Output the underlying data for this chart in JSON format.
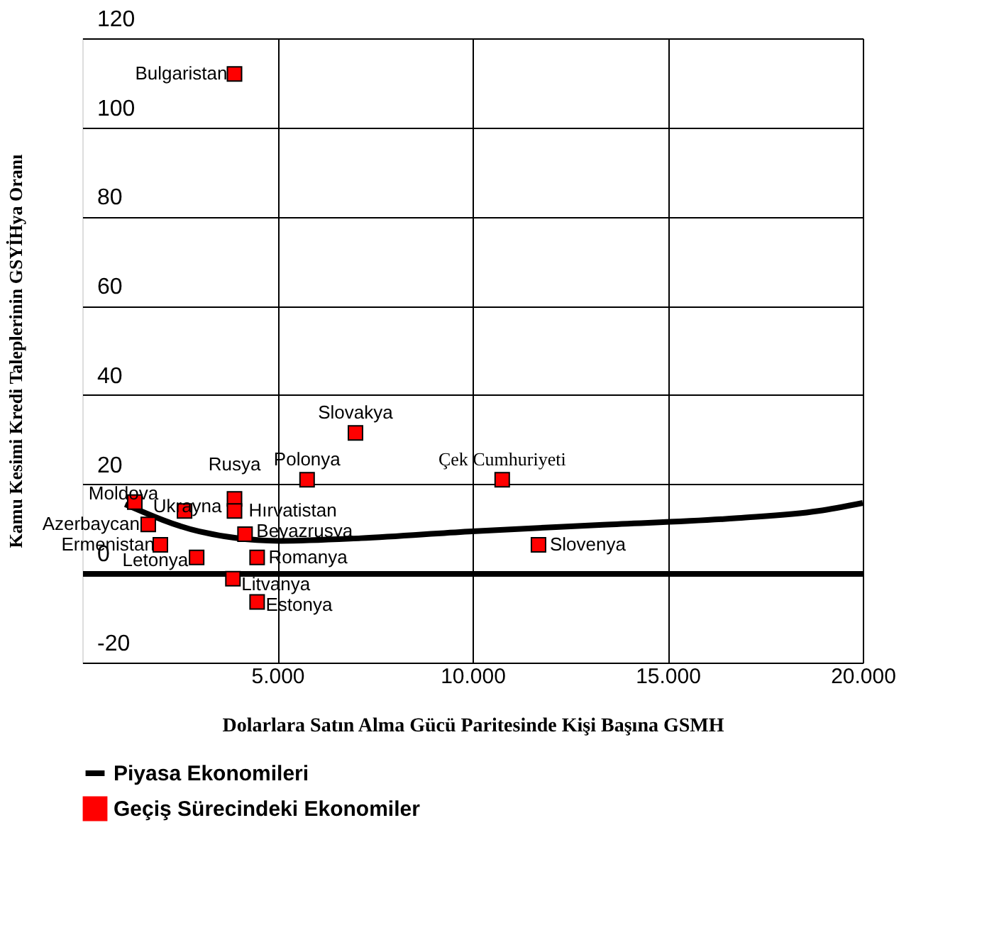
{
  "chart_data": {
    "type": "scatter",
    "xlabel": "Dolarlara Satın Alma Gücü Paritesinde Kişi Başına GSMH",
    "ylabel": "Kamu Kesimi Kredi Taleplerinin GSYİHya Oranı",
    "series": [
      {
        "name": "Piyasa Ekonomileri",
        "type": "line",
        "color": "#000000",
        "x": [
          1100,
          3000,
          5070,
          7140,
          9900,
          13345,
          16800,
          18860,
          20000
        ],
        "values": [
          15.5,
          9.4,
          7.3,
          7.9,
          9.4,
          10.9,
          12.4,
          14,
          15.8
        ]
      },
      {
        "name": "Geçiş Sürecindeki Ekonomiler",
        "color": "#ff0000",
        "marker": "square",
        "x": [
          3900,
          7000,
          5760,
          10760,
          1345,
          2620,
          3900,
          3900,
          1690,
          4170,
          2000,
          11690,
          2930,
          4480,
          3860,
          4480
        ],
        "values": [
          112,
          31.5,
          21,
          21,
          16,
          14,
          16.7,
          14,
          11,
          8.8,
          6.4,
          6.4,
          3.6,
          3.6,
          -1.2,
          -6.4
        ]
      }
    ],
    "annotations": [
      {
        "text": "Bulgaristan",
        "x": 3900,
        "y": 112
      },
      {
        "text": "Slovakya",
        "x": 7000,
        "y": 31.5
      },
      {
        "text": "Polonya",
        "x": 5760,
        "y": 21
      },
      {
        "text": "Çek Cumhuriyeti",
        "x": 10760,
        "y": 21
      },
      {
        "text": "Moldova",
        "x": 1345,
        "y": 16
      },
      {
        "text": "Ukrayna",
        "x": 2620,
        "y": 14
      },
      {
        "text": "Rusya",
        "x": 3900,
        "y": 16.7
      },
      {
        "text": "Hırvatistan",
        "x": 3900,
        "y": 14
      },
      {
        "text": "Azerbaycan",
        "x": 1690,
        "y": 11
      },
      {
        "text": "Beyazrusya",
        "x": 4170,
        "y": 8.8
      },
      {
        "text": "Ermenistan",
        "x": 2000,
        "y": 6.4
      },
      {
        "text": "Slovenya",
        "x": 11690,
        "y": 6.4
      },
      {
        "text": "Letonya",
        "x": 2930,
        "y": 3.6
      },
      {
        "text": "Romanya",
        "x": 4480,
        "y": 3.6
      },
      {
        "text": "Litvanya",
        "x": 3860,
        "y": -1.2
      },
      {
        "text": "Estonya",
        "x": 4480,
        "y": -6.4
      }
    ],
    "xlim": [
      0,
      20000
    ],
    "xticks": [
      {
        "value": 5000,
        "label": "5.000"
      },
      {
        "value": 10000,
        "label": "10.000"
      },
      {
        "value": 15000,
        "label": "15.000"
      },
      {
        "value": 20000,
        "label": "20.000"
      }
    ],
    "ylim": [
      -20,
      120
    ],
    "yticks": [
      -20,
      0,
      20,
      40,
      60,
      80,
      100,
      120
    ],
    "grid": true,
    "legend": "bottom"
  }
}
